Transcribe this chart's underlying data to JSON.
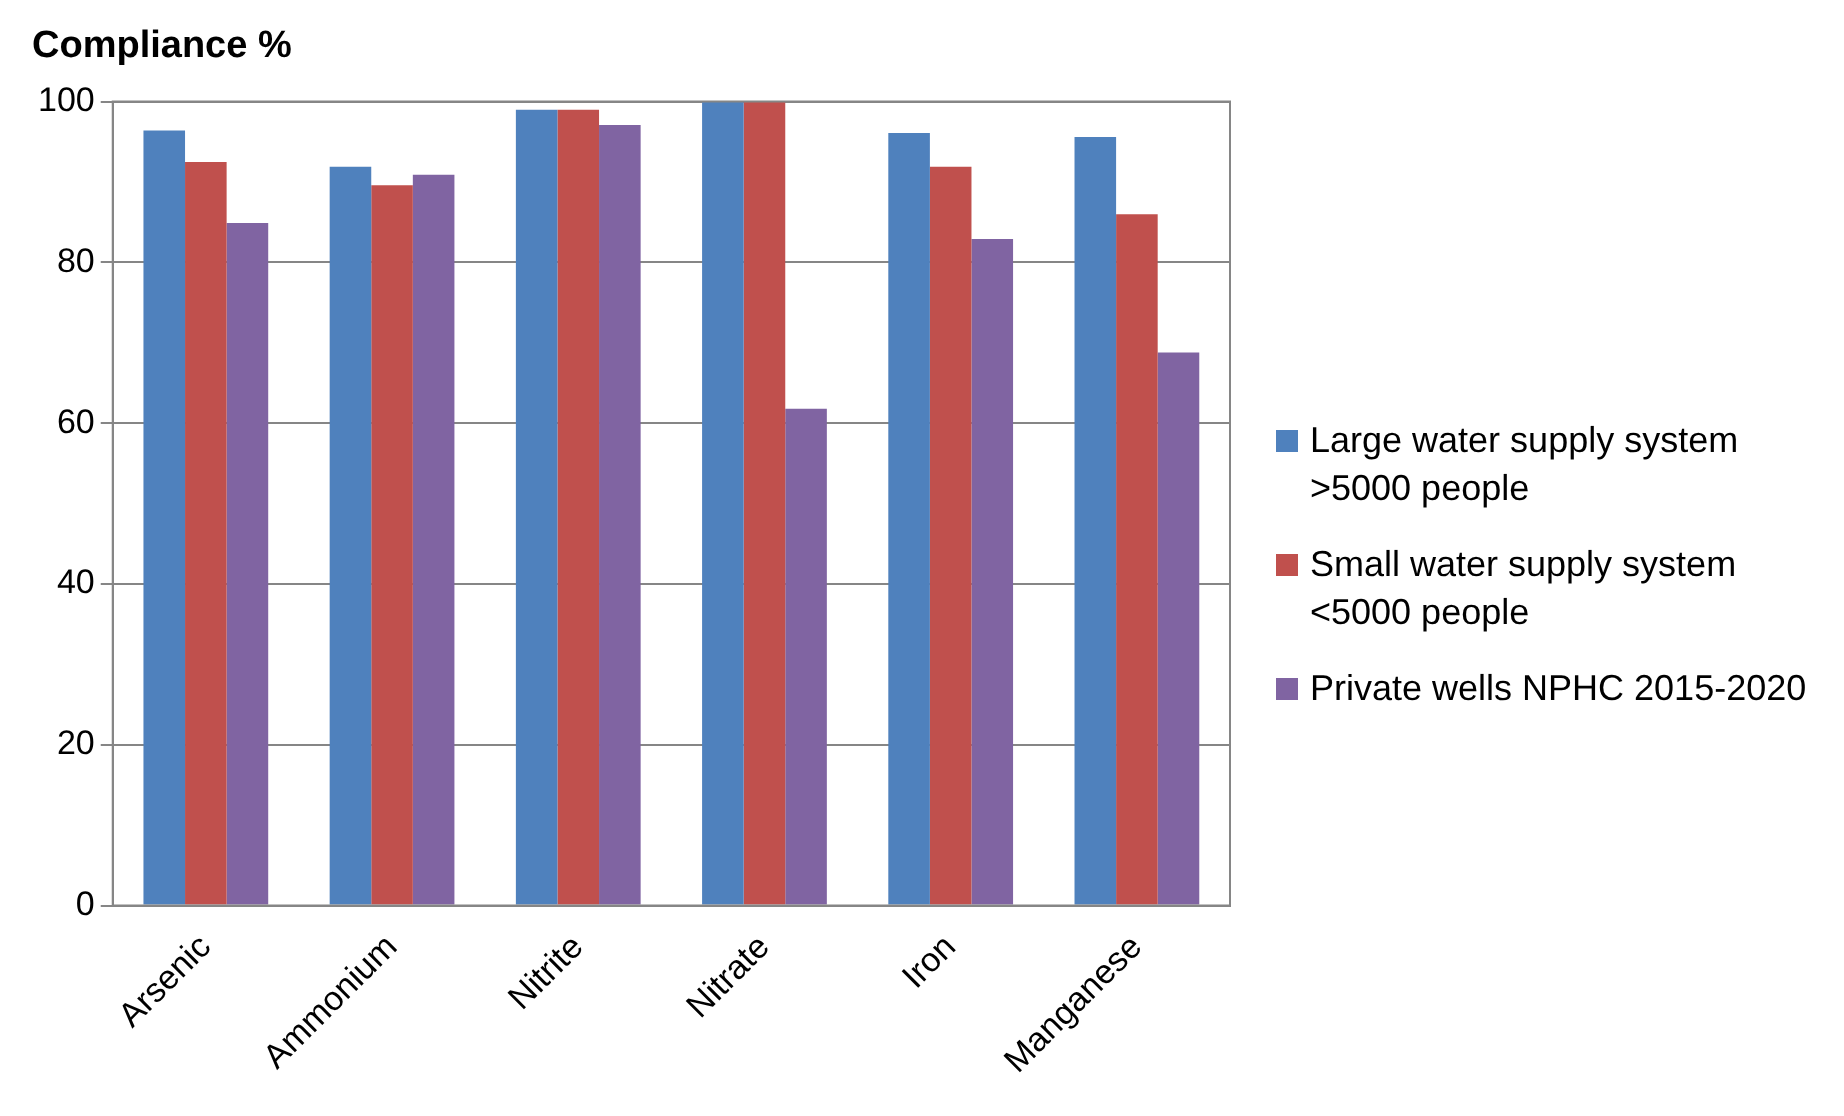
{
  "chart_data": {
    "type": "bar",
    "title": "Compliance %",
    "categories": [
      "Arsenic",
      "Ammonium",
      "Nitrite",
      "Nitrate",
      "Iron",
      "Manganese"
    ],
    "series": [
      {
        "name": "Large water supply system >5000 people",
        "color": "#4f81bd",
        "values": [
          96.4,
          91.9,
          99,
          100,
          96.1,
          95.6
        ]
      },
      {
        "name": "Small water supply system <5000 people",
        "color": "#c0504d",
        "values": [
          92.5,
          89.6,
          99,
          100,
          91.9,
          86
        ]
      },
      {
        "name": "Private wells NPHC 2015-2020",
        "color": "#8064a2",
        "values": [
          84.9,
          90.9,
          97.1,
          61.8,
          82.9,
          68.8
        ]
      }
    ],
    "ylim": [
      0,
      100
    ],
    "yticks": [
      0,
      20,
      40,
      60,
      80,
      100
    ],
    "grid": "y",
    "legend": "right"
  }
}
